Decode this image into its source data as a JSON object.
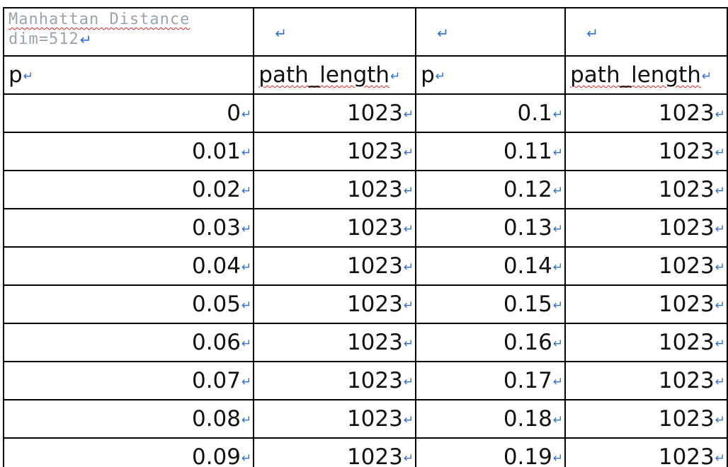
{
  "header": {
    "title_line1": "Manhattan Distance",
    "title_line2": "dim=512",
    "col1": "p",
    "col2": "path_length",
    "col3": "p",
    "col4": "path_length"
  },
  "paragraph_mark": "↵",
  "rows": [
    {
      "p1": "0",
      "len1": "1023",
      "p2": "0.1",
      "len2": "1023"
    },
    {
      "p1": "0.01",
      "len1": "1023",
      "p2": "0.11",
      "len2": "1023"
    },
    {
      "p1": "0.02",
      "len1": "1023",
      "p2": "0.12",
      "len2": "1023"
    },
    {
      "p1": "0.03",
      "len1": "1023",
      "p2": "0.13",
      "len2": "1023"
    },
    {
      "p1": "0.04",
      "len1": "1023",
      "p2": "0.14",
      "len2": "1023"
    },
    {
      "p1": "0.05",
      "len1": "1023",
      "p2": "0.15",
      "len2": "1023"
    },
    {
      "p1": "0.06",
      "len1": "1023",
      "p2": "0.16",
      "len2": "1023"
    },
    {
      "p1": "0.07",
      "len1": "1023",
      "p2": "0.17",
      "len2": "1023"
    },
    {
      "p1": "0.08",
      "len1": "1023",
      "p2": "0.18",
      "len2": "1023"
    },
    {
      "p1": "0.09",
      "len1": "1023",
      "p2": "0.19",
      "len2": "1023"
    }
  ]
}
